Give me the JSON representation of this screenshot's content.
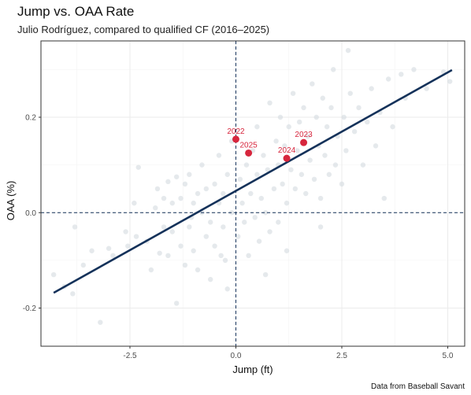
{
  "chart_data": {
    "type": "scatter",
    "title": "Jump vs. OAA Rate",
    "subtitle": "Julio Rodríguez, compared to qualified CF (2016–2025)",
    "xlabel": "Jump (ft)",
    "ylabel": "OAA (%)",
    "caption": "Data from Baseball Savant",
    "xlim": [
      -4.6,
      5.4
    ],
    "ylim": [
      -0.28,
      0.36
    ],
    "x_ticks": [
      -2.5,
      0,
      2.5,
      5
    ],
    "x_tick_labels": [
      "-2.5",
      "0.0",
      "2.5",
      "5.0"
    ],
    "y_ticks": [
      -0.2,
      0,
      0.2
    ],
    "y_tick_labels": [
      "-0.2",
      "0.0",
      "0.2"
    ],
    "grid": true,
    "reference_lines": {
      "x": 0,
      "y": 0
    },
    "trend_line": {
      "x": [
        -4.3,
        5.1
      ],
      "y": [
        -0.168,
        0.299
      ]
    },
    "colors": {
      "background_points": "#d3dae0",
      "highlight": "#d7263d",
      "trend": "#15325a",
      "reference": "#15325a",
      "grid": "#ebebeb",
      "panel_border": "#333333"
    },
    "highlight_series": [
      {
        "label": "2022",
        "x": 0.0,
        "y": 0.154
      },
      {
        "label": "2025",
        "x": 0.3,
        "y": 0.125
      },
      {
        "label": "2024",
        "x": 1.2,
        "y": 0.114
      },
      {
        "label": "2023",
        "x": 1.6,
        "y": 0.147
      }
    ],
    "background_points": [
      [
        -4.3,
        -0.13
      ],
      [
        -4.05,
        -0.155
      ],
      [
        -3.8,
        -0.03
      ],
      [
        -3.85,
        -0.17
      ],
      [
        -3.6,
        -0.11
      ],
      [
        -3.4,
        -0.08
      ],
      [
        -3.2,
        -0.23
      ],
      [
        -3.0,
        -0.075
      ],
      [
        -2.9,
        -0.09
      ],
      [
        -2.6,
        -0.04
      ],
      [
        -2.4,
        0.02
      ],
      [
        -2.35,
        -0.05
      ],
      [
        -2.1,
        -0.06
      ],
      [
        -2.3,
        0.095
      ],
      [
        -2.0,
        -0.12
      ],
      [
        -1.9,
        0.01
      ],
      [
        -1.8,
        -0.085
      ],
      [
        -1.7,
        -0.03
      ],
      [
        -1.7,
        0.03
      ],
      [
        -1.6,
        -0.09
      ],
      [
        -1.6,
        0.065
      ],
      [
        -1.5,
        0.02
      ],
      [
        -1.5,
        -0.04
      ],
      [
        -1.4,
        -0.19
      ],
      [
        -1.4,
        0.075
      ],
      [
        -1.3,
        -0.07
      ],
      [
        -1.3,
        0.03
      ],
      [
        -1.2,
        0.06
      ],
      [
        -1.2,
        -0.11
      ],
      [
        -1.1,
        -0.03
      ],
      [
        -1.1,
        0.08
      ],
      [
        -1.0,
        0.02
      ],
      [
        -1.0,
        -0.08
      ],
      [
        -0.9,
        0.04
      ],
      [
        -0.9,
        -0.12
      ],
      [
        -0.8,
        0.0
      ],
      [
        -0.8,
        0.1
      ],
      [
        -0.7,
        -0.05
      ],
      [
        -0.7,
        0.05
      ],
      [
        -0.6,
        -0.02
      ],
      [
        -0.6,
        -0.14
      ],
      [
        -0.5,
        0.06
      ],
      [
        -0.5,
        -0.07
      ],
      [
        -0.4,
        0.02
      ],
      [
        -0.4,
        0.12
      ],
      [
        -0.35,
        -0.09
      ],
      [
        -0.3,
        0.04
      ],
      [
        -0.3,
        -0.03
      ],
      [
        -0.2,
        0.08
      ],
      [
        -0.2,
        -0.16
      ],
      [
        -0.1,
        0.0
      ],
      [
        -0.1,
        0.15
      ],
      [
        0.05,
        -0.05
      ],
      [
        0.1,
        0.07
      ],
      [
        0.15,
        0.02
      ],
      [
        0.2,
        -0.02
      ],
      [
        0.25,
        0.1
      ],
      [
        0.3,
        -0.09
      ],
      [
        0.35,
        0.04
      ],
      [
        0.4,
        0.13
      ],
      [
        0.45,
        -0.01
      ],
      [
        0.5,
        0.08
      ],
      [
        0.5,
        0.18
      ],
      [
        0.55,
        -0.06
      ],
      [
        0.6,
        0.03
      ],
      [
        0.65,
        0.12
      ],
      [
        0.7,
        0.0
      ],
      [
        0.75,
        0.09
      ],
      [
        0.8,
        0.23
      ],
      [
        0.8,
        -0.04
      ],
      [
        0.9,
        0.05
      ],
      [
        0.95,
        0.15
      ],
      [
        1.0,
        0.1
      ],
      [
        1.0,
        -0.02
      ],
      [
        1.05,
        0.2
      ],
      [
        1.1,
        0.06
      ],
      [
        1.15,
        0.14
      ],
      [
        1.2,
        0.02
      ],
      [
        1.25,
        0.18
      ],
      [
        1.3,
        0.09
      ],
      [
        1.35,
        0.25
      ],
      [
        1.4,
        0.05
      ],
      [
        1.45,
        0.13
      ],
      [
        1.5,
        0.19
      ],
      [
        1.55,
        0.08
      ],
      [
        1.6,
        0.22
      ],
      [
        1.65,
        0.04
      ],
      [
        1.7,
        0.16
      ],
      [
        1.75,
        0.11
      ],
      [
        1.8,
        0.27
      ],
      [
        1.85,
        0.07
      ],
      [
        1.9,
        0.2
      ],
      [
        1.95,
        0.14
      ],
      [
        2.0,
        0.03
      ],
      [
        2.05,
        0.24
      ],
      [
        2.1,
        0.12
      ],
      [
        2.15,
        0.18
      ],
      [
        2.2,
        0.08
      ],
      [
        2.25,
        0.22
      ],
      [
        2.3,
        0.3
      ],
      [
        2.35,
        0.1
      ],
      [
        2.4,
        0.16
      ],
      [
        2.5,
        0.06
      ],
      [
        2.55,
        0.2
      ],
      [
        2.6,
        0.13
      ],
      [
        2.7,
        0.25
      ],
      [
        2.8,
        0.17
      ],
      [
        2.9,
        0.22
      ],
      [
        3.0,
        0.1
      ],
      [
        3.1,
        0.19
      ],
      [
        3.2,
        0.26
      ],
      [
        3.3,
        0.14
      ],
      [
        3.4,
        0.21
      ],
      [
        3.6,
        0.28
      ],
      [
        3.5,
        0.03
      ],
      [
        3.7,
        0.18
      ],
      [
        3.9,
        0.29
      ],
      [
        4.0,
        0.24
      ],
      [
        4.2,
        0.3
      ],
      [
        4.5,
        0.26
      ],
      [
        4.9,
        0.295
      ],
      [
        5.05,
        0.275
      ],
      [
        2.65,
        0.34
      ],
      [
        2.0,
        -0.03
      ],
      [
        1.2,
        -0.08
      ],
      [
        0.7,
        -0.13
      ],
      [
        -0.25,
        -0.1
      ],
      [
        -1.05,
        -0.01
      ],
      [
        -1.85,
        0.05
      ],
      [
        -2.55,
        -0.07
      ]
    ]
  }
}
